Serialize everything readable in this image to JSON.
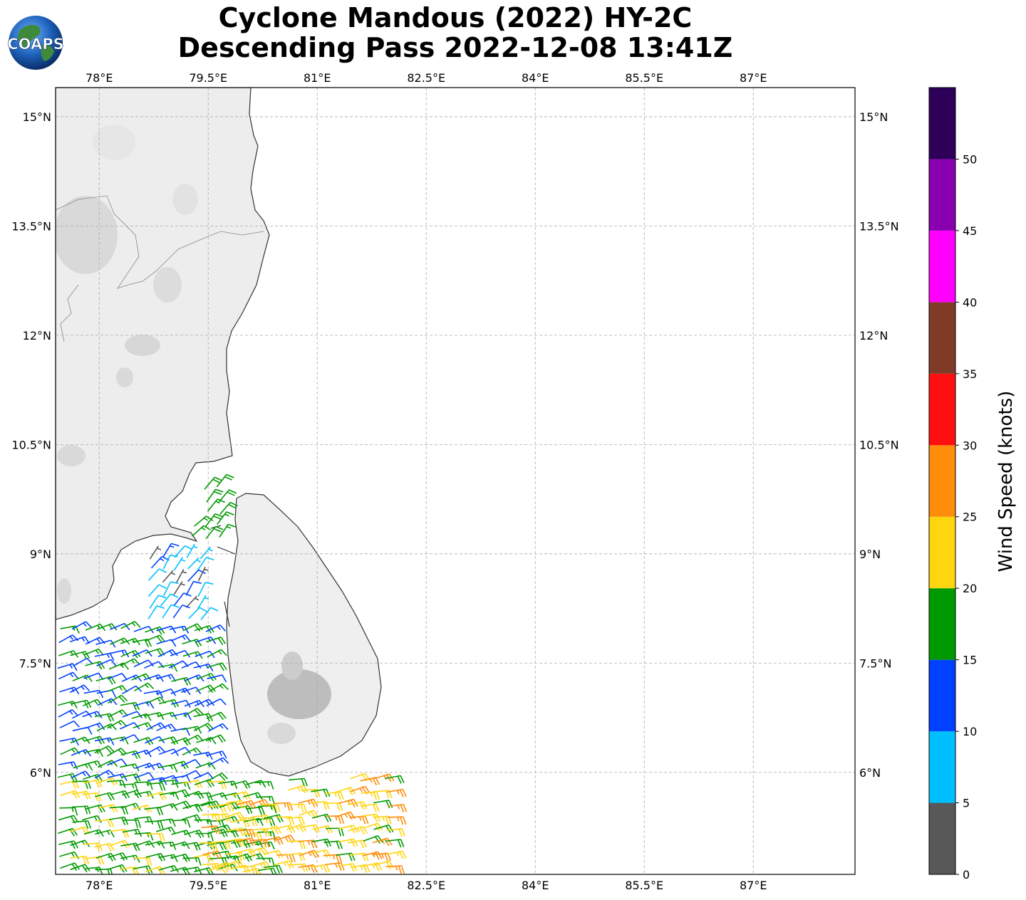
{
  "title": {
    "line1": "Cyclone Mandous (2022) HY-2C",
    "line2": "Descending Pass 2022-12-08 13:41Z"
  },
  "logo": {
    "text": "COAPS",
    "icon": "globe-icon"
  },
  "map": {
    "lon_range": [
      77.4,
      88.4
    ],
    "lat_range": [
      4.6,
      15.4
    ],
    "lon_ticks": [
      78.0,
      79.5,
      81.0,
      82.5,
      84.0,
      85.5,
      87.0
    ],
    "lon_tick_labels": [
      "78°E",
      "79.5°E",
      "81°E",
      "82.5°E",
      "84°E",
      "85.5°E",
      "87°E"
    ],
    "lat_ticks": [
      15.0,
      13.5,
      12.0,
      10.5,
      9.0,
      7.5,
      6.0
    ],
    "lat_tick_labels": [
      "15°N",
      "13.5°N",
      "12°N",
      "10.5°N",
      "9°N",
      "7.5°N",
      "6°N"
    ],
    "gridlines": true,
    "features": [
      "India east coast",
      "Sri Lanka",
      "Palk Strait",
      "Gulf of Mannar",
      "Bay of Bengal"
    ]
  },
  "colorbar": {
    "label": "Wind Speed (knots)",
    "tick_labels": [
      "0",
      "5",
      "10",
      "15",
      "20",
      "25",
      "30",
      "35",
      "40",
      "45",
      "50"
    ],
    "ticks": [
      0,
      5,
      10,
      15,
      20,
      25,
      30,
      35,
      40,
      45,
      50
    ],
    "max": 55,
    "bins": [
      {
        "from": 0,
        "to": 5,
        "color": "#585858"
      },
      {
        "from": 5,
        "to": 10,
        "color": "#00bfff"
      },
      {
        "from": 10,
        "to": 15,
        "color": "#0040ff"
      },
      {
        "from": 15,
        "to": 20,
        "color": "#009900"
      },
      {
        "from": 20,
        "to": 25,
        "color": "#ffd510"
      },
      {
        "from": 25,
        "to": 30,
        "color": "#ff8c0a"
      },
      {
        "from": 30,
        "to": 35,
        "color": "#ff1010"
      },
      {
        "from": 35,
        "to": 40,
        "color": "#7f3b28"
      },
      {
        "from": 40,
        "to": 45,
        "color": "#ff00ff"
      },
      {
        "from": 45,
        "to": 50,
        "color": "#8800b0"
      },
      {
        "from": 50,
        "to": 55,
        "color": "#2e005a"
      }
    ]
  },
  "wind_data": {
    "units": "knots",
    "note_regions": [
      {
        "lon": [
          79.3,
          79.8
        ],
        "lat": [
          9.0,
          9.9
        ],
        "speed_range": [
          15,
          22
        ],
        "from_deg": 40
      },
      {
        "lon": [
          78.7,
          79.4
        ],
        "lat": [
          8.0,
          9.0
        ],
        "speed_range": [
          2,
          14
        ],
        "from_deg": 35
      },
      {
        "lon": [
          77.4,
          79.5
        ],
        "lat": [
          5.8,
          8.0
        ],
        "speed_range": [
          10,
          20
        ],
        "from_deg": 70
      },
      {
        "lon": [
          77.4,
          81.0
        ],
        "lat": [
          4.6,
          5.8
        ],
        "speed_range": [
          15,
          22
        ],
        "from_deg": 80
      },
      {
        "lon": [
          79.4,
          82.1
        ],
        "lat": [
          4.6,
          5.9
        ],
        "speed_range": [
          20,
          27
        ],
        "from_deg": 80
      }
    ]
  }
}
